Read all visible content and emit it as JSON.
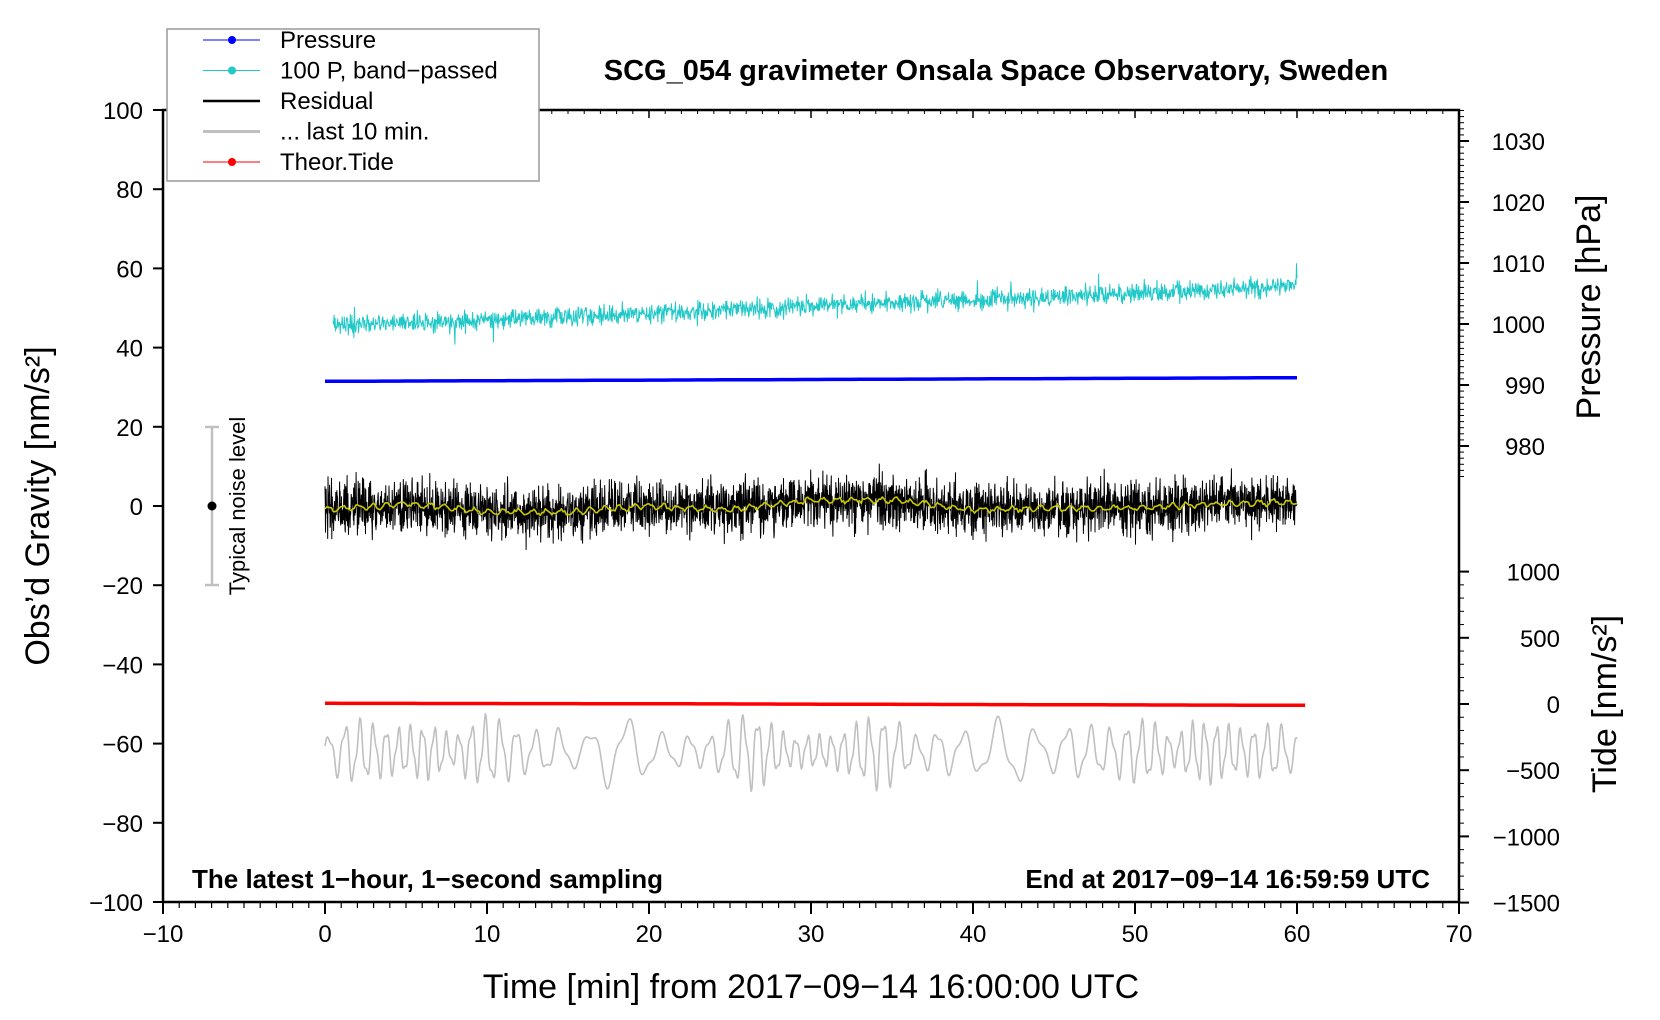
{
  "chart_data": {
    "type": "line",
    "title": "SCG_054 gravimeter Onsala Space Observatory, Sweden",
    "xlabel": "Time [min] from 2017−09−14 16:00:00 UTC",
    "ylabel": "Obs’d Gravity [nm/s²]",
    "ylabel_right_top": "Pressure [hPa]",
    "ylabel_right_bottom": "Tide [nm/s²]",
    "xlim": [
      -10,
      70
    ],
    "ylim": [
      -100,
      100
    ],
    "pressure_axis": {
      "ticks": [
        980,
        990,
        1000,
        1010,
        1020,
        1030
      ],
      "range_hpa": [
        975,
        1035
      ]
    },
    "tide_axis": {
      "ticks": [
        -1500,
        -1000,
        -500,
        0,
        500,
        1000
      ]
    },
    "x_ticks": [
      "−10",
      "0",
      "10",
      "20",
      "30",
      "40",
      "50",
      "60",
      "70"
    ],
    "x_tick_values": [
      -10,
      0,
      10,
      20,
      30,
      40,
      50,
      60,
      70
    ],
    "y_ticks": [
      "−100",
      "−80",
      "−60",
      "−40",
      "−20",
      "0",
      "20",
      "40",
      "60",
      "80",
      "100"
    ],
    "y_tick_values": [
      -100,
      -80,
      -60,
      -40,
      -20,
      0,
      20,
      40,
      60,
      80,
      100
    ],
    "pressure_tick_labels": [
      "980",
      "990",
      "1000",
      "1010",
      "1020",
      "1030"
    ],
    "tide_tick_labels": [
      "−1500",
      "−1000",
      "−500",
      "0",
      "500",
      "1000"
    ],
    "annotations": {
      "left_bottom": "The latest 1−hour, 1−second sampling",
      "right_bottom": "End at 2017−09−14 16:59:59 UTC",
      "noise": "Typical noise level",
      "noise_range": [
        -20,
        20
      ]
    },
    "legend": {
      "placement": "top-left",
      "entries": [
        {
          "label": "Pressure",
          "color": "#0000ff",
          "marker": true
        },
        {
          "label": "100 P, band−passed",
          "color": "#20c8c8",
          "marker": true
        },
        {
          "label": "Residual",
          "color": "#000000",
          "marker": false
        },
        {
          "label": "... last 10 min.",
          "color": "#c0c0c0",
          "marker": false
        },
        {
          "label": "Theor.Tide",
          "color": "#ff0000",
          "marker": true
        }
      ]
    },
    "series": [
      {
        "name": "Pressure",
        "unit": "hPa",
        "color": "#0000ff",
        "x": [
          0,
          20,
          40,
          60
        ],
        "values": [
          990.6,
          990.8,
          991.0,
          991.2
        ]
      },
      {
        "name": "100 P, band-passed (plotted, nm/s² axis)",
        "color": "#20c8c8",
        "x": [
          0.5,
          10,
          20,
          30,
          40,
          50,
          60
        ],
        "values": [
          45.5,
          47,
          48.5,
          50.5,
          52,
          53.5,
          56
        ],
        "noise_amplitude": 2.5
      },
      {
        "name": "Residual",
        "color": "#000000",
        "x": [
          0,
          5,
          10,
          15,
          20,
          25,
          30,
          35,
          40,
          45,
          50,
          55,
          60
        ],
        "values": [
          -1,
          0.5,
          -1.5,
          -1.5,
          0,
          -1,
          1.5,
          1.5,
          -1,
          -0.5,
          -0.5,
          0.5,
          1
        ],
        "noise_sd": 3.3
      },
      {
        "name": "Residual smoothed",
        "color": "#c8c800",
        "x": [
          0,
          5,
          10,
          15,
          20,
          25,
          30,
          35,
          40,
          45,
          50,
          55,
          60
        ],
        "values": [
          -1,
          0.5,
          -1.5,
          -1.5,
          0,
          -1,
          1.5,
          1.5,
          -1,
          -0.5,
          -0.5,
          0.5,
          1
        ]
      },
      {
        "name": "... last 10 min. (plotted, offset)",
        "color": "#c0c0c0",
        "x_span": [
          0,
          60
        ],
        "center": -62,
        "amplitude": 6
      },
      {
        "name": "Theor.Tide",
        "unit": "nm/s²",
        "color": "#ff0000",
        "x": [
          0,
          20,
          40,
          60.5
        ],
        "values": [
          5,
          2,
          -4,
          -10
        ]
      }
    ]
  }
}
